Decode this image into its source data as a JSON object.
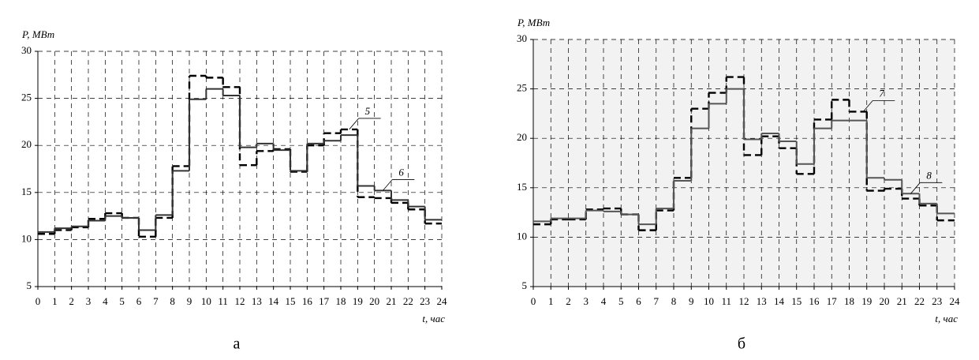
{
  "chart_data": [
    {
      "type": "step",
      "ylabel": "P, МВт",
      "xlabel": "t, час",
      "caption": "а",
      "background": "#ffffff",
      "x": [
        0,
        1,
        2,
        3,
        4,
        5,
        6,
        7,
        8,
        9,
        10,
        11,
        12,
        13,
        14,
        15,
        16,
        17,
        18,
        19,
        20,
        21,
        22,
        23
      ],
      "xlim": [
        0,
        24
      ],
      "xticks": [
        0,
        1,
        2,
        3,
        4,
        5,
        6,
        7,
        8,
        9,
        10,
        11,
        12,
        13,
        14,
        15,
        16,
        17,
        18,
        19,
        20,
        21,
        22,
        23,
        24
      ],
      "ylim": [
        5,
        30
      ],
      "yticks": [
        5,
        10,
        15,
        20,
        25,
        30
      ],
      "grid": true,
      "series": [
        {
          "name": "5",
          "color": "#000000",
          "dashed": true,
          "values": [
            10.6,
            11.0,
            11.3,
            12.2,
            12.8,
            12.3,
            10.3,
            12.3,
            17.8,
            27.4,
            27.2,
            26.2,
            17.9,
            19.4,
            19.6,
            17.2,
            20.0,
            21.3,
            21.7,
            14.5,
            14.4,
            13.9,
            13.2,
            11.7
          ]
        },
        {
          "name": "6",
          "color": "#333333",
          "dashed": false,
          "values": [
            10.8,
            11.2,
            11.4,
            12.0,
            12.5,
            12.3,
            11.0,
            12.6,
            17.3,
            24.9,
            26.0,
            25.3,
            19.8,
            20.2,
            19.5,
            17.3,
            20.2,
            20.5,
            21.1,
            15.7,
            15.2,
            14.2,
            13.5,
            12.1
          ]
        }
      ]
    },
    {
      "type": "step",
      "ylabel": "P, МВт",
      "xlabel": "t, час",
      "caption": "б",
      "background": "#f2f2f2",
      "x": [
        0,
        1,
        2,
        3,
        4,
        5,
        6,
        7,
        8,
        9,
        10,
        11,
        12,
        13,
        14,
        15,
        16,
        17,
        18,
        19,
        20,
        21,
        22,
        23
      ],
      "xlim": [
        0,
        24
      ],
      "xticks": [
        0,
        1,
        2,
        3,
        4,
        5,
        6,
        7,
        8,
        9,
        10,
        11,
        12,
        13,
        14,
        15,
        16,
        17,
        18,
        19,
        20,
        21,
        22,
        23,
        24
      ],
      "ylim": [
        5,
        30
      ],
      "yticks": [
        5,
        10,
        15,
        20,
        25,
        30
      ],
      "grid": true,
      "series": [
        {
          "name": "7",
          "color": "#000000",
          "dashed": true,
          "values": [
            11.3,
            11.8,
            11.8,
            12.8,
            12.9,
            12.3,
            10.7,
            12.7,
            16.0,
            23.0,
            24.6,
            26.2,
            18.3,
            20.2,
            19.0,
            16.4,
            21.9,
            23.9,
            22.7,
            14.7,
            14.9,
            13.9,
            13.2,
            11.7
          ]
        },
        {
          "name": "8",
          "color": "#555555",
          "dashed": false,
          "values": [
            11.6,
            11.9,
            11.9,
            12.7,
            12.6,
            12.3,
            11.3,
            12.9,
            15.7,
            21.0,
            23.5,
            25.0,
            19.9,
            20.5,
            19.7,
            17.4,
            21.0,
            21.8,
            21.8,
            16.0,
            15.8,
            14.4,
            13.4,
            12.4
          ]
        }
      ]
    }
  ]
}
